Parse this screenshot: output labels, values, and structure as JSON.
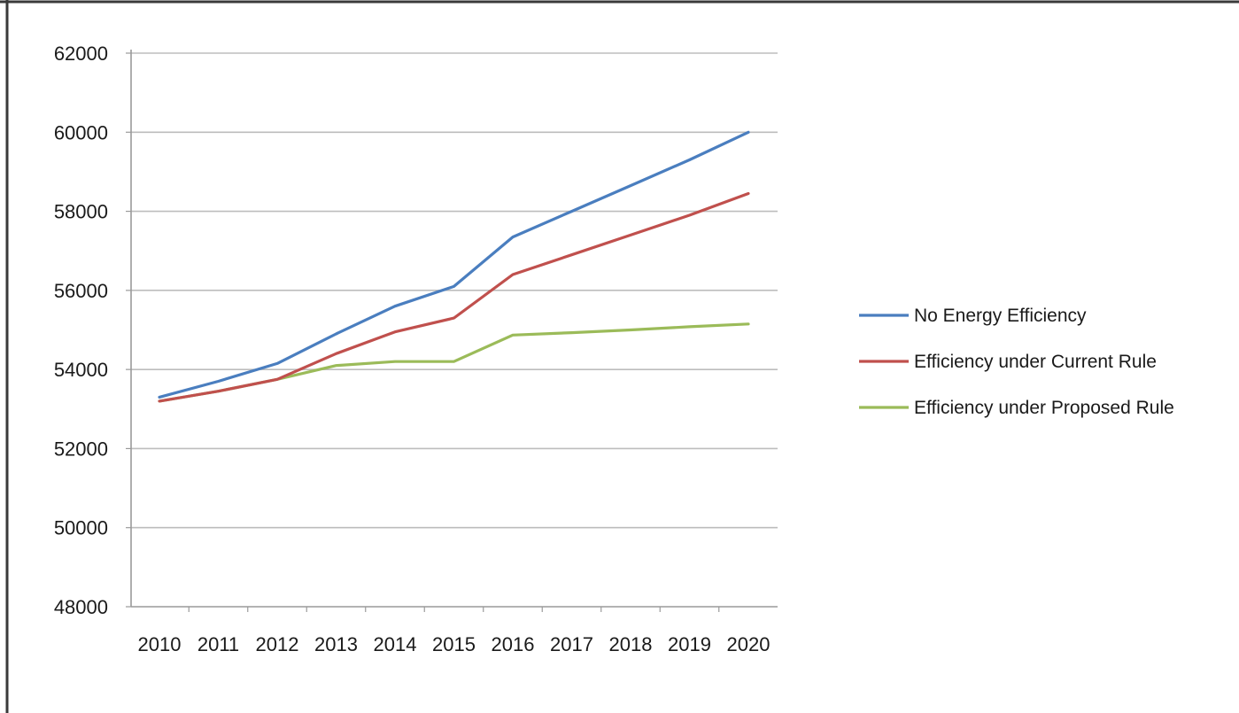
{
  "chart_data": {
    "type": "line",
    "title": "",
    "xlabel": "",
    "ylabel": "",
    "x": [
      "2010",
      "2011",
      "2012",
      "2013",
      "2014",
      "2015",
      "2016",
      "2017",
      "2018",
      "2019",
      "2020"
    ],
    "ylim": [
      48000,
      62000
    ],
    "yticks": [
      48000,
      50000,
      52000,
      54000,
      56000,
      58000,
      60000,
      62000
    ],
    "grid": true,
    "legend_position": "right",
    "series": [
      {
        "name": "No Energy Efficiency",
        "color": "#4a7ebf",
        "values": [
          53300,
          53700,
          54150,
          54900,
          55600,
          56100,
          57350,
          58000,
          58650,
          59300,
          60000
        ]
      },
      {
        "name": "Efficiency under Current Rule",
        "color": "#c0504d",
        "values": [
          53200,
          53450,
          53750,
          54400,
          54950,
          55300,
          56400,
          56900,
          57400,
          57900,
          58450
        ]
      },
      {
        "name": "Efficiency under Proposed Rule",
        "color": "#9bbb59",
        "values": [
          53200,
          53450,
          53750,
          54100,
          54200,
          54200,
          54870,
          54930,
          55000,
          55080,
          55150
        ]
      }
    ]
  }
}
